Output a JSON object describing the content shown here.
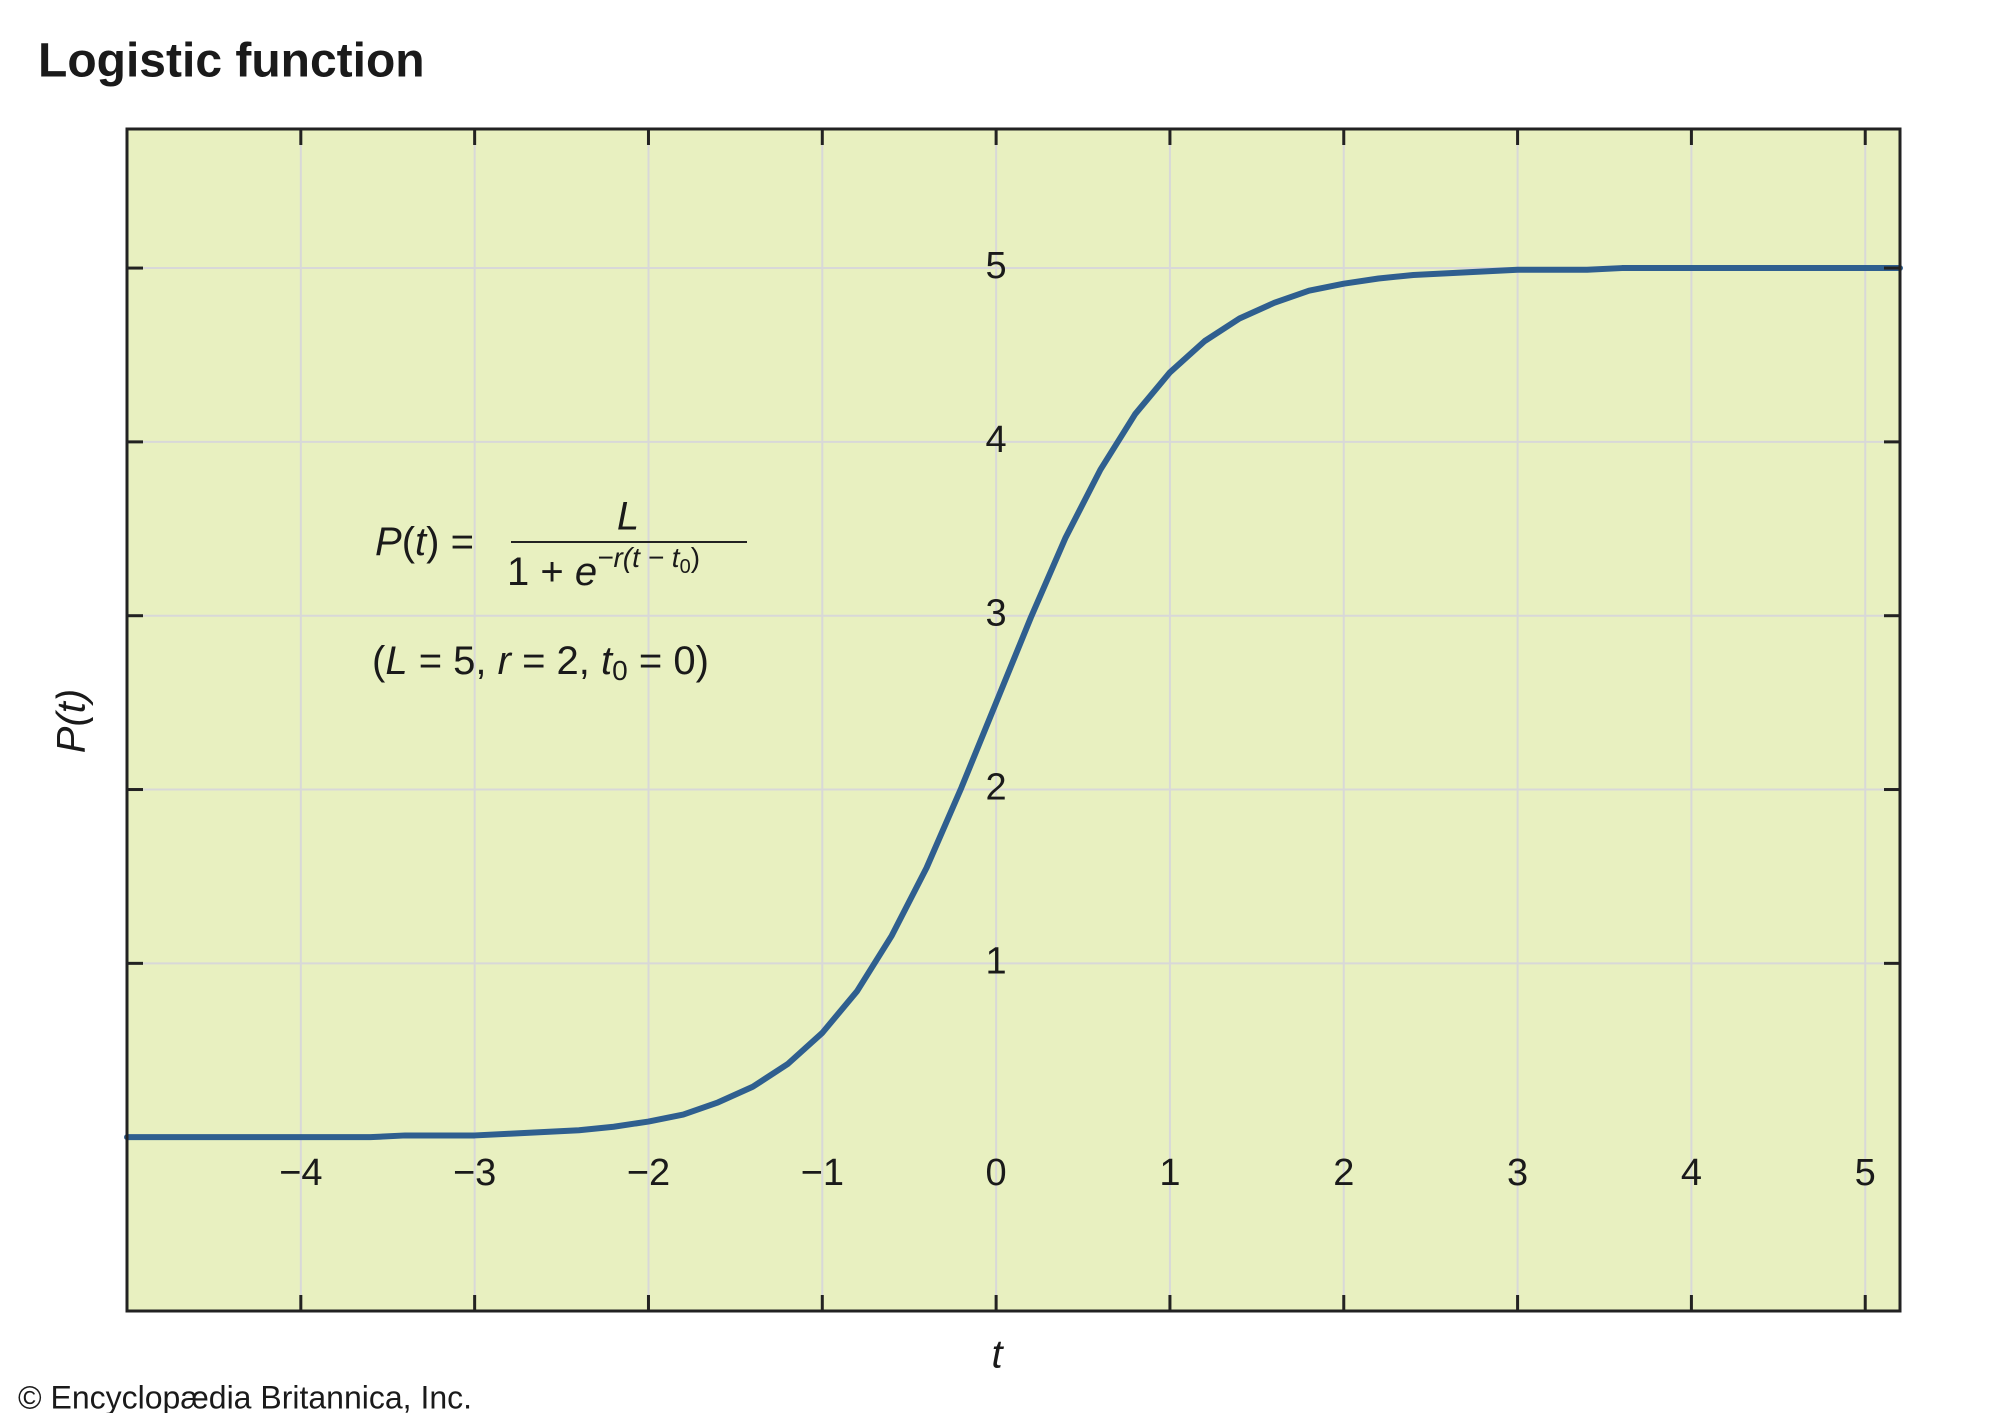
{
  "chart_data": {
    "type": "line",
    "title": "Logistic function",
    "x_label": "t",
    "y_label": "P(t)",
    "footer": "© Encyclopædia Britannica, Inc.",
    "color": "#2f5f8f",
    "background": "#e8f0c0",
    "grid": true,
    "x": [
      -5,
      -4.8,
      -4.6,
      -4.4,
      -4.2,
      -4,
      -3.8,
      -3.6,
      -3.4,
      -3.2,
      -3,
      -2.8,
      -2.6,
      -2.4,
      -2.2,
      -2,
      -1.8,
      -1.6,
      -1.4,
      -1.2,
      -1,
      -0.8,
      -0.6,
      -0.4,
      -0.2,
      0,
      0.2,
      0.4,
      0.6,
      0.8,
      1,
      1.2,
      1.4,
      1.6,
      1.8,
      2,
      2.2,
      2.4,
      2.6,
      2.8,
      3,
      3.2,
      3.4,
      3.6,
      3.8,
      4,
      4.2,
      4.4,
      4.6,
      4.8,
      5,
      5.2
    ],
    "values": [
      0,
      0,
      0,
      0,
      0,
      0,
      0,
      0,
      0.01,
      0.01,
      0.01,
      0.02,
      0.03,
      0.04,
      0.06,
      0.09,
      0.13,
      0.2,
      0.29,
      0.42,
      0.6,
      0.84,
      1.16,
      1.55,
      2.01,
      2.5,
      2.99,
      3.45,
      3.84,
      4.16,
      4.4,
      4.58,
      4.71,
      4.8,
      4.87,
      4.91,
      4.94,
      4.96,
      4.97,
      4.98,
      4.99,
      4.99,
      4.99,
      5,
      5,
      5,
      5,
      5,
      5,
      5,
      5,
      5
    ],
    "xlim": [
      -5,
      5.2
    ],
    "ylim": [
      -1,
      5.8
    ],
    "xticks": [
      {
        "value": -4,
        "label": "−4"
      },
      {
        "value": -3,
        "label": "−3"
      },
      {
        "value": -2,
        "label": "−2"
      },
      {
        "value": -1,
        "label": "−1"
      },
      0,
      1,
      2,
      3,
      4,
      5
    ],
    "yticks": [
      1,
      2,
      3,
      4,
      5
    ],
    "annotations": {
      "formula_lhs": [
        "P",
        "(",
        "t",
        ") ="
      ],
      "formula_numerator": "L",
      "formula_denominator": [
        "1 + ",
        "e",
        "−r(t − t",
        "0",
        ")"
      ],
      "parameters": [
        "(",
        "L",
        " = 5, ",
        "r",
        " = 2, ",
        "t",
        "0",
        " = 0)"
      ]
    }
  }
}
